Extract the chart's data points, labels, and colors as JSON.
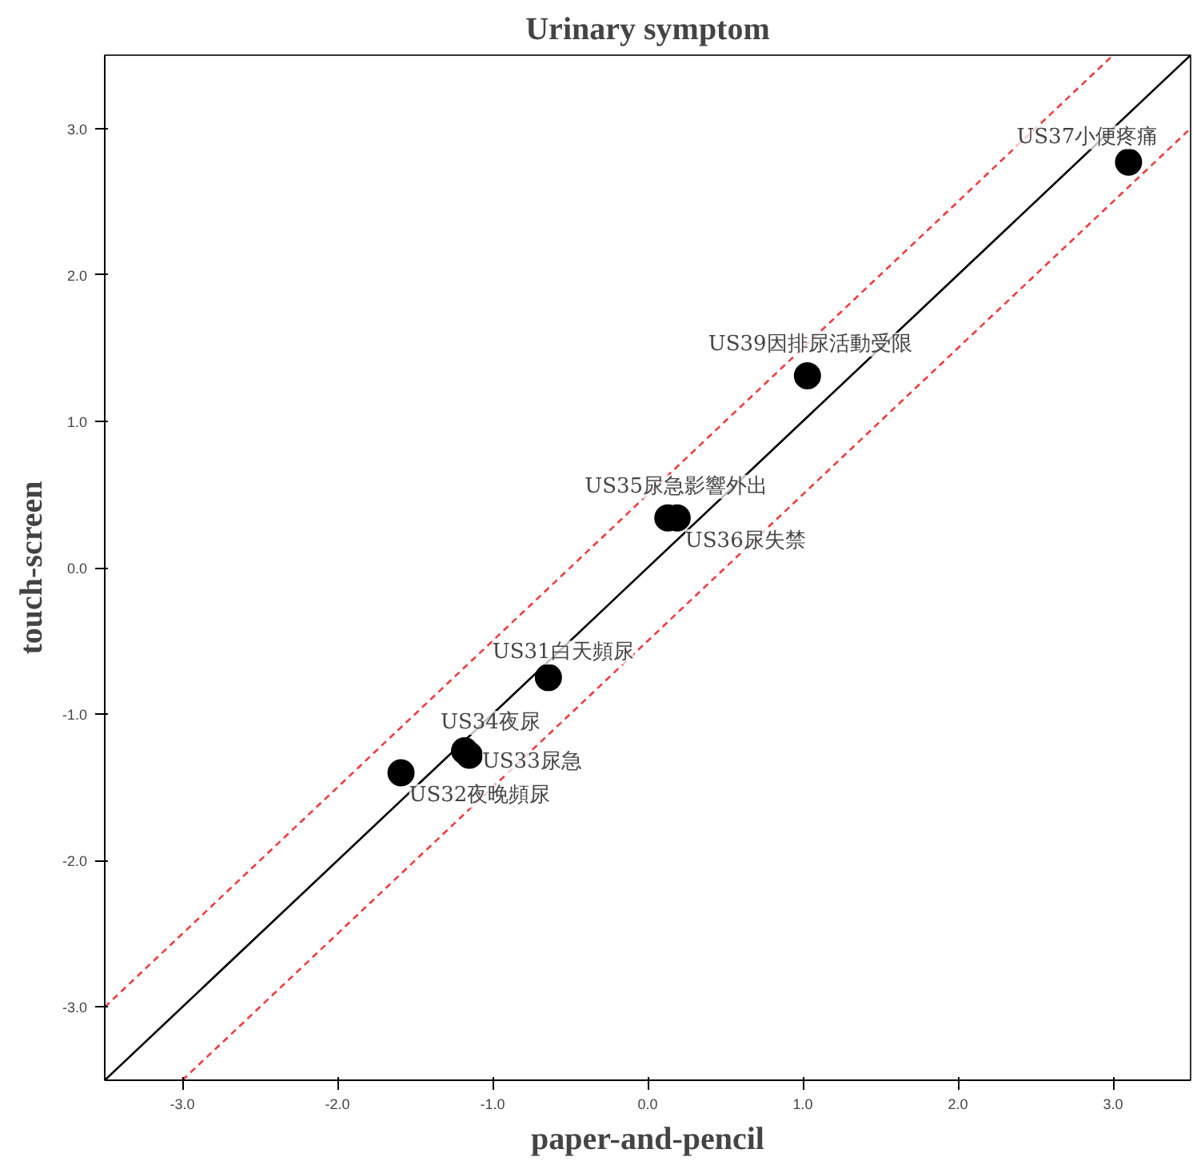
{
  "chart_data": {
    "type": "scatter",
    "title": "Urinary symptom",
    "xlabel": "paper-and-pencil",
    "ylabel": "touch-screen",
    "xlim": [
      -3.5,
      3.5
    ],
    "ylim": [
      -3.5,
      3.5
    ],
    "xticks": [
      {
        "value": -3,
        "label": "-3.0"
      },
      {
        "value": -2,
        "label": "-2.0"
      },
      {
        "value": -1,
        "label": "-1.0"
      },
      {
        "value": 0,
        "label": "0.0"
      },
      {
        "value": 1,
        "label": "1.0"
      },
      {
        "value": 2,
        "label": "2.0"
      },
      {
        "value": 3,
        "label": "3.0"
      }
    ],
    "yticks": [
      {
        "value": -3,
        "label": "-3.0"
      },
      {
        "value": -2,
        "label": "-2.0"
      },
      {
        "value": -1,
        "label": "-1.0"
      },
      {
        "value": 0,
        "label": "0.0"
      },
      {
        "value": 1,
        "label": "1.0"
      },
      {
        "value": 2,
        "label": "2.0"
      },
      {
        "value": 3,
        "label": "3.0"
      }
    ],
    "grid": false,
    "marker": "circle",
    "series": [
      {
        "color": "#000000",
        "x": [
          3.1,
          1.03,
          0.13,
          0.19,
          -0.64,
          -1.18,
          -1.15,
          -1.59
        ],
        "values": [
          2.77,
          1.31,
          0.34,
          0.34,
          -0.75,
          -1.25,
          -1.28,
          -1.4
        ]
      },
      {
        "type": "line",
        "marker": "none",
        "color": "#000000",
        "line_style": "solid",
        "x": [
          -3.5,
          3.5
        ],
        "values": [
          -3.5,
          3.5
        ]
      },
      {
        "type": "line",
        "marker": "none",
        "color": "#f03c3c",
        "line_style": "dashed",
        "x": [
          -3.5,
          3.0
        ],
        "values": [
          -3.0,
          3.5
        ]
      },
      {
        "type": "line",
        "marker": "none",
        "color": "#f03c3c",
        "line_style": "dashed",
        "x": [
          -3.0,
          3.5
        ],
        "values": [
          -3.5,
          3.0
        ]
      }
    ],
    "annotations": [
      {
        "text": "US37小便疼痛",
        "x": 3.1,
        "y": 2.77
      },
      {
        "text": "US39因排尿活動受限",
        "x": 1.03,
        "y": 1.31
      },
      {
        "text": "US35尿急影響外出",
        "x": 0.13,
        "y": 0.34
      },
      {
        "text": "US36尿失禁",
        "x": 0.19,
        "y": 0.34
      },
      {
        "text": "US31白天頻尿",
        "x": -0.64,
        "y": -0.75
      },
      {
        "text": "US34夜尿",
        "x": -1.18,
        "y": -1.25
      },
      {
        "text": "US33尿急",
        "x": -1.15,
        "y": -1.28
      },
      {
        "text": "US32夜晚頻尿",
        "x": -1.59,
        "y": -1.4
      }
    ]
  }
}
